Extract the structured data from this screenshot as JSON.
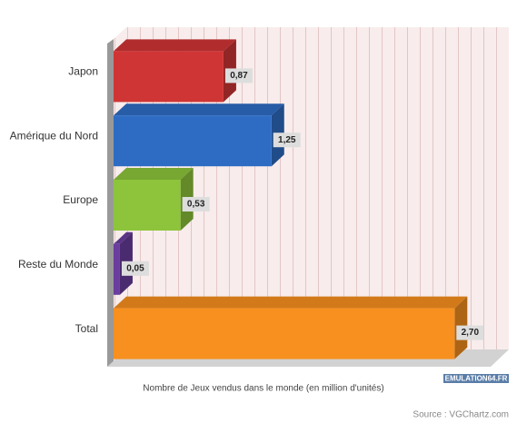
{
  "chart_data": {
    "type": "bar3d_horizontal",
    "categories": [
      "Japon",
      "Amérique du Nord",
      "Europe",
      "Reste du Monde",
      "Total"
    ],
    "values": [
      0.87,
      1.25,
      0.53,
      0.05,
      2.7
    ],
    "value_labels": [
      "0,87",
      "1,25",
      "0,53",
      "0,05",
      "2,70"
    ],
    "colors": [
      "#d03535",
      "#2e6cc4",
      "#8dc43b",
      "#6a3d9e",
      "#f7901e"
    ],
    "xlim": [
      0,
      3
    ],
    "x_label": "Nombre de Jeux vendus dans le monde (en million d'unités)",
    "logo": "EMULATION64.FR",
    "source": "Source : VGChartz.com"
  }
}
